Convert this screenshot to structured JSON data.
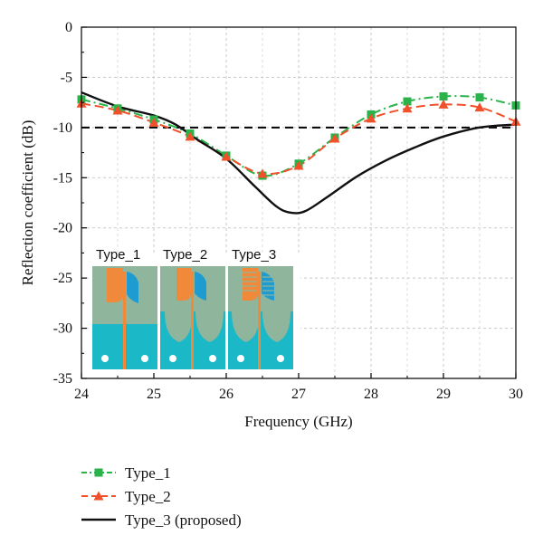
{
  "chart_data": {
    "type": "line",
    "xlabel": "Frequency (GHz)",
    "ylabel": "Reflection coefficient (dB)",
    "xlim": [
      24,
      30
    ],
    "ylim": [
      -35,
      0
    ],
    "xticks": [
      "24",
      "25",
      "26",
      "27",
      "28",
      "29",
      "30"
    ],
    "yticks": [
      "0",
      "-5",
      "-10",
      "-15",
      "-20",
      "-25",
      "-30",
      "-35"
    ],
    "grid": true,
    "legend_position": "bottom",
    "reference_line": {
      "y": -10,
      "style": "dashed"
    },
    "series": [
      {
        "name": "Type_1",
        "color": "#2ab34a",
        "marker": "square",
        "x": [
          24,
          24.5,
          25,
          25.5,
          26,
          26.5,
          27,
          27.5,
          28,
          28.5,
          29,
          29.5,
          30
        ],
        "y": [
          -7.2,
          -8.1,
          -9.2,
          -10.6,
          -12.8,
          -14.8,
          -13.6,
          -11.0,
          -8.7,
          -7.4,
          -6.9,
          -7.0,
          -7.8
        ]
      },
      {
        "name": "Type_2",
        "color": "#f0502a",
        "marker": "triangle",
        "x": [
          24,
          24.5,
          25,
          25.5,
          26,
          26.5,
          27,
          27.5,
          28,
          28.5,
          29,
          29.5,
          30
        ],
        "y": [
          -7.6,
          -8.3,
          -9.5,
          -10.9,
          -12.9,
          -14.6,
          -13.8,
          -11.1,
          -9.1,
          -8.1,
          -7.7,
          -8.0,
          -9.4
        ]
      },
      {
        "name": "Type_3 (proposed)",
        "color": "#111111",
        "marker": "none",
        "x": [
          24,
          24.5,
          25,
          25.3,
          25.6,
          26,
          26.4,
          26.7,
          26.9,
          27.1,
          27.4,
          27.8,
          28.2,
          28.6,
          29,
          29.5,
          30
        ],
        "y": [
          -6.5,
          -7.9,
          -8.8,
          -9.7,
          -11.2,
          -13.1,
          -15.9,
          -17.9,
          -18.5,
          -18.3,
          -16.9,
          -14.9,
          -13.3,
          -12.0,
          -10.9,
          -10.0,
          -9.7
        ]
      }
    ],
    "inset": {
      "labels": [
        "Type_1",
        "Type_2",
        "Type_3"
      ]
    }
  }
}
